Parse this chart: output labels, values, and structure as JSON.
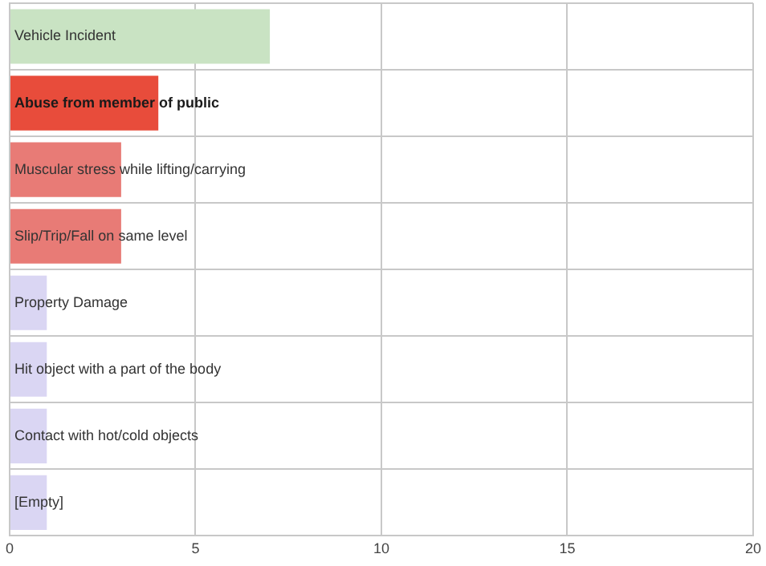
{
  "chart_data": {
    "type": "bar",
    "orientation": "horizontal",
    "categories": [
      "Vehicle Incident",
      "Abuse from member of public",
      "Muscular stress while lifting/carrying",
      "Slip/Trip/Fall on same level",
      "Property Damage",
      "Hit object with a part of the body",
      "Contact with hot/cold objects",
      "[Empty]"
    ],
    "values": [
      7,
      4,
      3,
      3,
      1,
      1,
      1,
      1
    ],
    "colors": [
      "#c9e3c3",
      "#e84c3b",
      "#e87b76",
      "#e87b76",
      "#dad6f3",
      "#dad6f3",
      "#dad6f3",
      "#dad6f3"
    ],
    "xlim": [
      0,
      20
    ],
    "xticks": [
      0,
      5,
      10,
      15,
      20
    ],
    "grid": true,
    "legend": false
  }
}
